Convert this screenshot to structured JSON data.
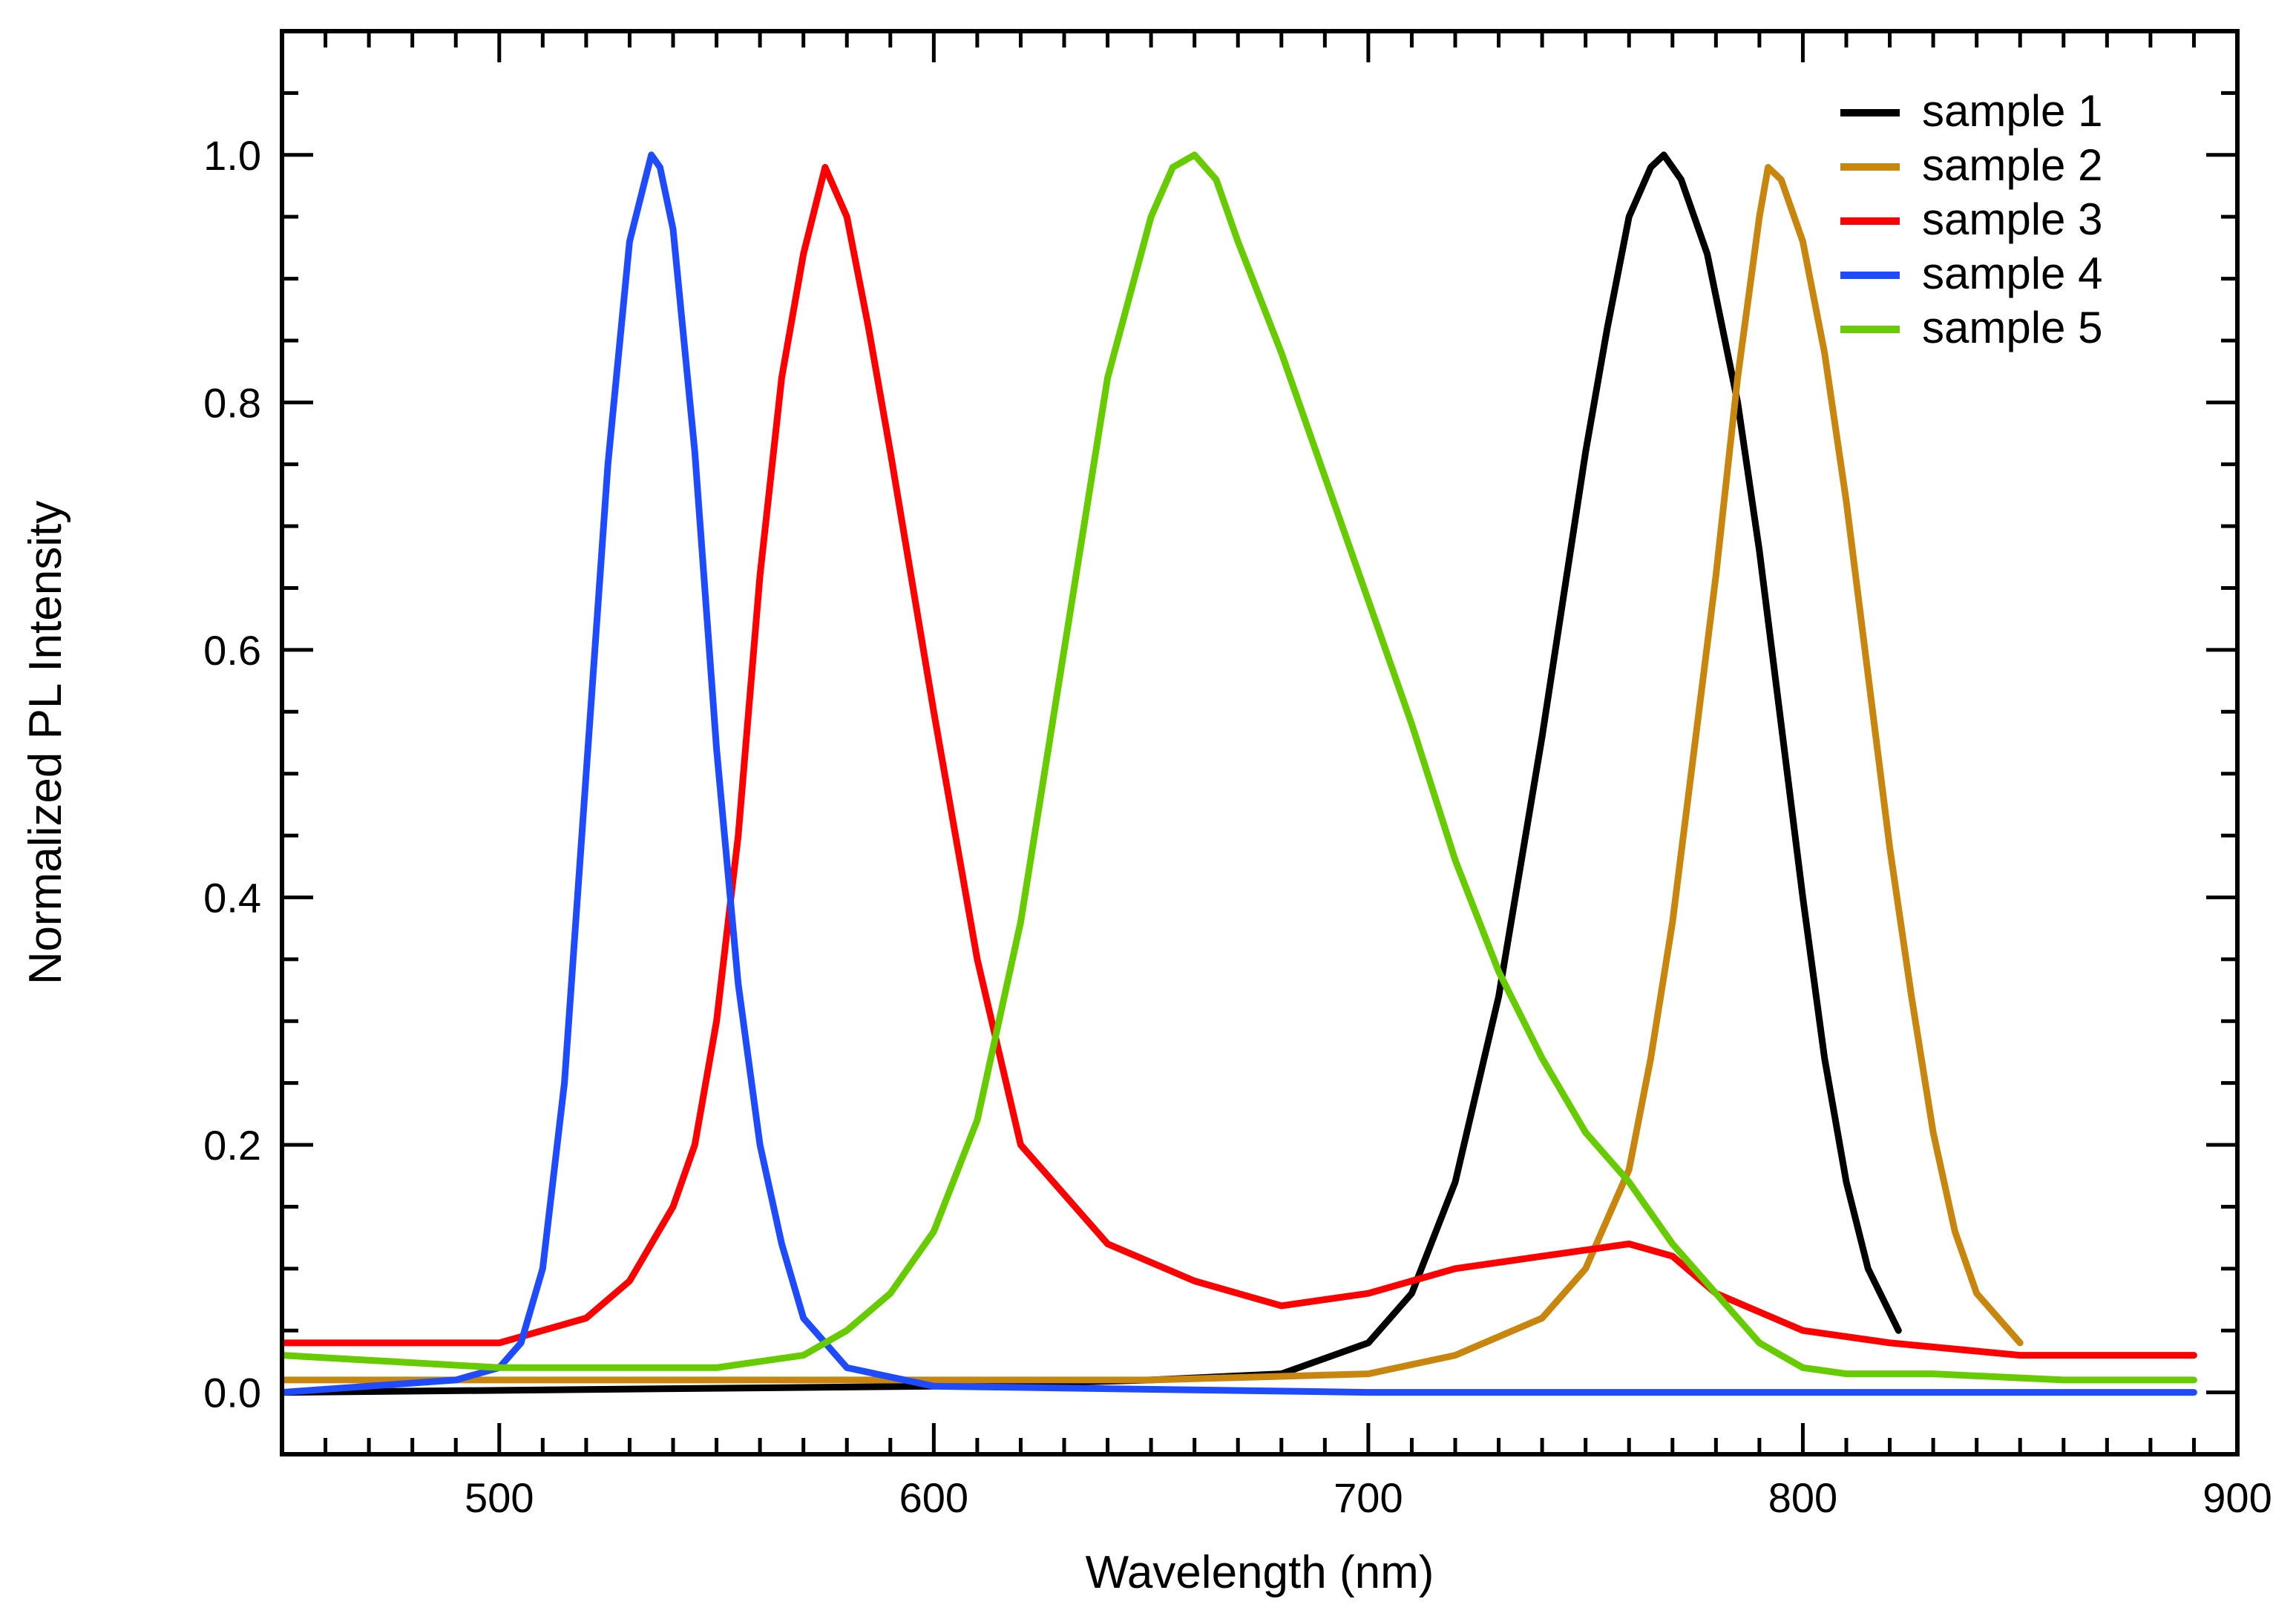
{
  "chart_data": {
    "type": "line",
    "title": "",
    "xlabel": "Wavelength (nm)",
    "ylabel": "Normalized PL Intensity",
    "xlim": [
      450,
      900
    ],
    "ylim": [
      -0.05,
      1.1
    ],
    "x_ticks": [
      500,
      600,
      700,
      800,
      900
    ],
    "x_tick_labels": [
      "500",
      "600",
      "700",
      "800",
      "900"
    ],
    "y_ticks": [
      0.0,
      0.2,
      0.4,
      0.6,
      0.8,
      1.0
    ],
    "y_tick_labels": [
      "0.0",
      "0.2",
      "0.4",
      "0.6",
      "0.8",
      "1.0"
    ],
    "grid": false,
    "legend_position": "top-right",
    "series": [
      {
        "name": "sample 1",
        "color": "#000000",
        "x": [
          450,
          600,
          650,
          680,
          700,
          710,
          720,
          730,
          740,
          750,
          755,
          760,
          765,
          768,
          772,
          778,
          785,
          790,
          795,
          800,
          805,
          810,
          815,
          822
        ],
        "values": [
          0.0,
          0.005,
          0.01,
          0.015,
          0.04,
          0.08,
          0.17,
          0.32,
          0.53,
          0.76,
          0.86,
          0.95,
          0.99,
          1.0,
          0.98,
          0.92,
          0.8,
          0.68,
          0.54,
          0.4,
          0.27,
          0.17,
          0.1,
          0.05
        ]
      },
      {
        "name": "sample 2",
        "color": "#C8860E",
        "x": [
          450,
          600,
          650,
          700,
          720,
          740,
          750,
          760,
          765,
          770,
          775,
          780,
          785,
          790,
          792,
          795,
          800,
          805,
          810,
          815,
          820,
          825,
          830,
          835,
          840,
          850
        ],
        "values": [
          0.01,
          0.01,
          0.01,
          0.015,
          0.03,
          0.06,
          0.1,
          0.18,
          0.27,
          0.38,
          0.52,
          0.66,
          0.82,
          0.95,
          0.99,
          0.98,
          0.93,
          0.84,
          0.72,
          0.58,
          0.44,
          0.32,
          0.21,
          0.13,
          0.08,
          0.04
        ]
      },
      {
        "name": "sample 3",
        "color": "#FF0000",
        "x": [
          450,
          480,
          500,
          510,
          520,
          530,
          540,
          545,
          550,
          555,
          560,
          565,
          570,
          575,
          580,
          585,
          590,
          600,
          610,
          620,
          640,
          660,
          680,
          700,
          720,
          740,
          760,
          770,
          780,
          800,
          820,
          850,
          890
        ],
        "values": [
          0.04,
          0.04,
          0.04,
          0.05,
          0.06,
          0.09,
          0.15,
          0.2,
          0.3,
          0.45,
          0.66,
          0.82,
          0.92,
          0.99,
          0.95,
          0.86,
          0.76,
          0.55,
          0.35,
          0.2,
          0.12,
          0.09,
          0.07,
          0.08,
          0.1,
          0.11,
          0.12,
          0.11,
          0.08,
          0.05,
          0.04,
          0.03,
          0.03
        ]
      },
      {
        "name": "sample 4",
        "color": "#1F4BFF",
        "x": [
          450,
          490,
          500,
          505,
          510,
          515,
          520,
          525,
          530,
          535,
          537,
          540,
          545,
          550,
          555,
          560,
          565,
          570,
          580,
          600,
          700,
          890
        ],
        "values": [
          0.0,
          0.01,
          0.02,
          0.04,
          0.1,
          0.25,
          0.5,
          0.75,
          0.93,
          1.0,
          0.99,
          0.94,
          0.76,
          0.52,
          0.33,
          0.2,
          0.12,
          0.06,
          0.02,
          0.005,
          0.0,
          0.0
        ]
      },
      {
        "name": "sample 5",
        "color": "#66CC00",
        "x": [
          450,
          500,
          550,
          570,
          580,
          590,
          600,
          610,
          620,
          630,
          640,
          650,
          655,
          660,
          665,
          670,
          680,
          690,
          700,
          710,
          720,
          730,
          740,
          750,
          760,
          770,
          780,
          790,
          800,
          810,
          830,
          860,
          890
        ],
        "values": [
          0.03,
          0.02,
          0.02,
          0.03,
          0.05,
          0.08,
          0.13,
          0.22,
          0.38,
          0.6,
          0.82,
          0.95,
          0.99,
          1.0,
          0.98,
          0.93,
          0.84,
          0.74,
          0.64,
          0.54,
          0.43,
          0.34,
          0.27,
          0.21,
          0.17,
          0.12,
          0.08,
          0.04,
          0.02,
          0.015,
          0.015,
          0.01,
          0.01
        ]
      }
    ]
  }
}
